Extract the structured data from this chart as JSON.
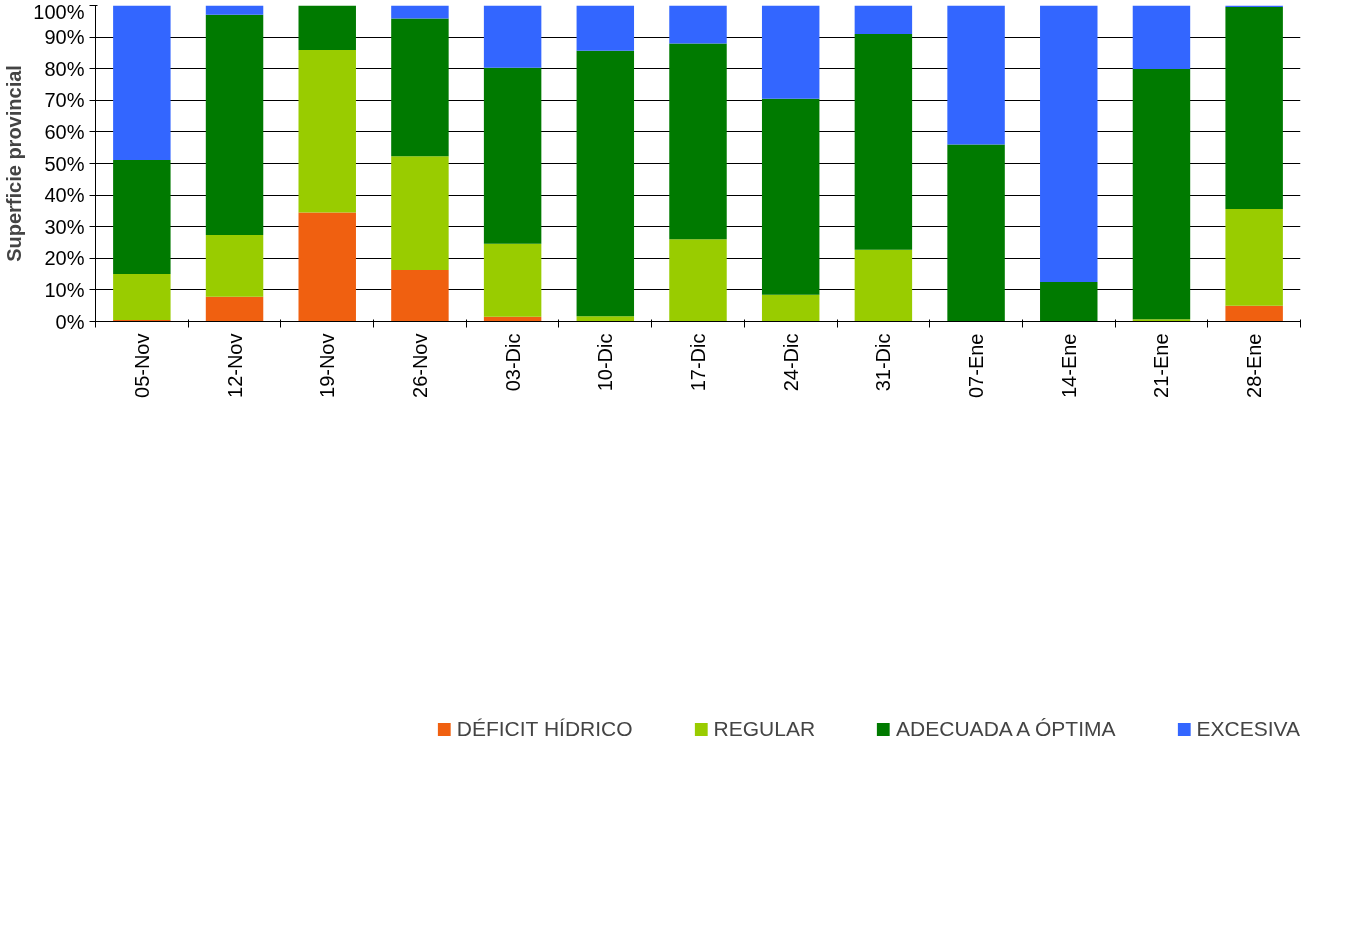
{
  "chart_data": {
    "type": "bar",
    "stacked": true,
    "ylabel": "Superficie provincial",
    "categories": [
      "05-Nov",
      "12-Nov",
      "19-Nov",
      "26-Nov",
      "03-Dic",
      "10-Dic",
      "17-Dic",
      "24-Dic",
      "31-Dic",
      "07-Ene",
      "14-Ene",
      "21-Ene",
      "28-Ene"
    ],
    "series": [
      {
        "name": "DÉFICIT HÍDRICO",
        "color": "#f06010",
        "values": [
          0.5,
          7.8,
          34.5,
          16.3,
          1.5,
          0,
          0,
          0,
          0,
          0,
          0,
          0,
          5.0
        ]
      },
      {
        "name": "REGULAR",
        "color": "#99cc00",
        "values": [
          14.5,
          19.6,
          51.4,
          36.0,
          23.1,
          1.7,
          26.0,
          8.5,
          22.7,
          0,
          0,
          0.7,
          30.6
        ]
      },
      {
        "name": "ADECUADA A ÓPTIMA",
        "color": "#007a00",
        "values": [
          36.1,
          69.7,
          14.1,
          43.6,
          55.7,
          84.0,
          62.0,
          62.0,
          68.3,
          56.0,
          12.5,
          79.2,
          63.9
        ]
      },
      {
        "name": "EXCESIVA",
        "color": "#3366ff",
        "values": [
          48.9,
          2.9,
          0,
          4.1,
          19.7,
          14.3,
          12.0,
          29.5,
          9.0,
          44.0,
          87.5,
          20.1,
          0.5
        ]
      }
    ],
    "ylim": [
      0,
      100
    ],
    "yticks": [
      {
        "value": 0,
        "label": "0%"
      },
      {
        "value": 10,
        "label": "10%"
      },
      {
        "value": 20,
        "label": "20%"
      },
      {
        "value": 30,
        "label": "30%"
      },
      {
        "value": 40,
        "label": "40%"
      },
      {
        "value": 50,
        "label": "50%"
      },
      {
        "value": 60,
        "label": "60%"
      },
      {
        "value": 70,
        "label": "70%"
      },
      {
        "value": 80,
        "label": "80%"
      },
      {
        "value": 90,
        "label": "90%"
      },
      {
        "value": 100,
        "label": "100%"
      }
    ],
    "grid": "y",
    "legend": "bottom"
  }
}
